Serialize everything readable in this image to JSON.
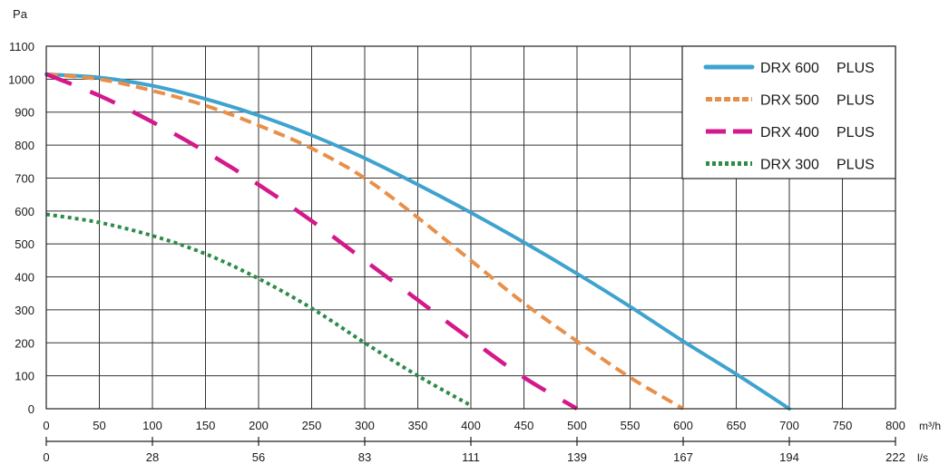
{
  "chart_data": {
    "type": "line",
    "ylabel": "Pa",
    "ylim": [
      0,
      1100
    ],
    "yticks": [
      0,
      100,
      200,
      300,
      400,
      500,
      600,
      700,
      800,
      900,
      1000,
      1100
    ],
    "x_primary": {
      "unit": "m³/h",
      "range": [
        0,
        800
      ],
      "ticks": [
        0,
        50,
        100,
        150,
        200,
        250,
        300,
        350,
        400,
        450,
        500,
        550,
        600,
        650,
        700,
        750,
        800
      ]
    },
    "x_secondary": {
      "unit": "l/s",
      "tick_values_m3h": [
        0,
        100,
        200,
        300,
        400,
        500,
        600,
        700,
        800
      ],
      "tick_labels": [
        "0",
        "28",
        "56",
        "83",
        "111",
        "139",
        "167",
        "194",
        "222"
      ]
    },
    "grid": true,
    "legend_position": "top-right",
    "series": [
      {
        "name": "DRX 600",
        "suffix": "PLUS",
        "color": "#3fa3cf",
        "style": "solid",
        "points": [
          [
            0,
            1015
          ],
          [
            50,
            1005
          ],
          [
            100,
            980
          ],
          [
            150,
            940
          ],
          [
            200,
            890
          ],
          [
            250,
            830
          ],
          [
            300,
            760
          ],
          [
            350,
            680
          ],
          [
            400,
            595
          ],
          [
            450,
            505
          ],
          [
            500,
            410
          ],
          [
            550,
            310
          ],
          [
            600,
            205
          ],
          [
            650,
            105
          ],
          [
            700,
            0
          ]
        ]
      },
      {
        "name": "DRX 500",
        "suffix": "PLUS",
        "color": "#e8904a",
        "style": "dashed",
        "points": [
          [
            0,
            1015
          ],
          [
            50,
            1000
          ],
          [
            100,
            965
          ],
          [
            150,
            920
          ],
          [
            200,
            860
          ],
          [
            250,
            790
          ],
          [
            300,
            700
          ],
          [
            350,
            580
          ],
          [
            400,
            450
          ],
          [
            450,
            320
          ],
          [
            500,
            205
          ],
          [
            550,
            95
          ],
          [
            600,
            0
          ]
        ]
      },
      {
        "name": "DRX 400",
        "suffix": "PLUS",
        "color": "#d4198a",
        "style": "longdash",
        "points": [
          [
            0,
            1015
          ],
          [
            50,
            950
          ],
          [
            100,
            870
          ],
          [
            150,
            780
          ],
          [
            200,
            680
          ],
          [
            250,
            570
          ],
          [
            300,
            450
          ],
          [
            350,
            330
          ],
          [
            400,
            210
          ],
          [
            450,
            95
          ],
          [
            500,
            0
          ]
        ]
      },
      {
        "name": "DRX 300",
        "suffix": "PLUS",
        "color": "#2e8b4a",
        "style": "dotted",
        "points": [
          [
            0,
            590
          ],
          [
            50,
            565
          ],
          [
            100,
            525
          ],
          [
            150,
            470
          ],
          [
            200,
            395
          ],
          [
            250,
            305
          ],
          [
            300,
            200
          ],
          [
            350,
            100
          ],
          [
            400,
            10
          ]
        ]
      }
    ]
  }
}
